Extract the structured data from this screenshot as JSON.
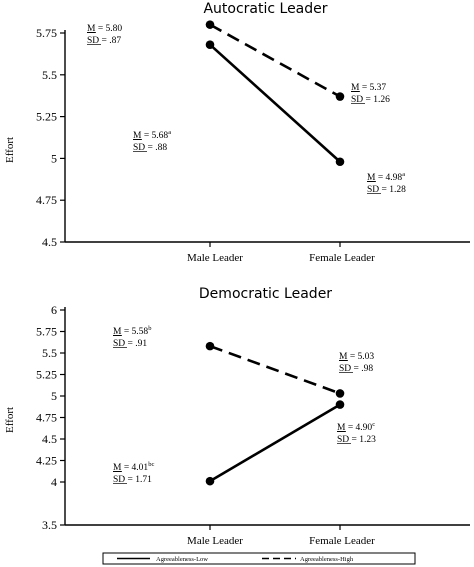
{
  "chart_data": [
    {
      "type": "line",
      "title": "Autocratic Leader",
      "ylabel": "Effort",
      "categories": [
        "Male Leader",
        "Female Leader"
      ],
      "ylim": [
        4.5,
        5.75
      ],
      "yticks": [
        "4.5",
        "4.75",
        "5",
        "5.25",
        "5.5",
        "5.75"
      ],
      "series": [
        {
          "values": [
            5.68,
            4.98
          ],
          "style": "solid"
        },
        {
          "values": [
            5.8,
            5.37
          ],
          "style": "dashed"
        }
      ],
      "annotations": [
        {
          "m_label": "M",
          "m_text": " = 5.80",
          "m_sup": "",
          "sd_label": "SD",
          "sd_text": " = .87"
        },
        {
          "m_label": "M",
          "m_text": " = 5.37",
          "m_sup": "",
          "sd_label": "SD",
          "sd_text": " = 1.26"
        },
        {
          "m_label": "M",
          "m_text": " = 5.68",
          "m_sup": "a",
          "sd_label": "SD",
          "sd_text": " = .88"
        },
        {
          "m_label": "M",
          "m_text": " = 4.98",
          "m_sup": "a",
          "sd_label": "SD",
          "sd_text": " = 1.28"
        }
      ]
    },
    {
      "type": "line",
      "title": "Democratic Leader",
      "ylabel": "Effort",
      "categories": [
        "Male Leader",
        "Female Leader"
      ],
      "ylim": [
        3.5,
        6
      ],
      "yticks": [
        "3.5",
        "4",
        "4.25",
        "4.5",
        "4.75",
        "5",
        "5.25",
        "5.5",
        "5.75",
        "6"
      ],
      "series": [
        {
          "values": [
            4.01,
            4.9
          ],
          "style": "solid"
        },
        {
          "values": [
            5.58,
            5.03
          ],
          "style": "dashed"
        }
      ],
      "annotations": [
        {
          "m_label": "M",
          "m_text": " = 5.58",
          "m_sup": "b",
          "sd_label": "SD",
          "sd_text": " = .91"
        },
        {
          "m_label": "M",
          "m_text": " = 5.03",
          "m_sup": "",
          "sd_label": "SD",
          "sd_text": " = .98"
        },
        {
          "m_label": "M",
          "m_text": " = 4.90",
          "m_sup": "c",
          "sd_label": "SD",
          "sd_text": " = 1.23"
        },
        {
          "m_label": "M",
          "m_text": " = 4.01",
          "m_sup": "bc",
          "sd_label": "SD",
          "sd_text": " = 1.71"
        }
      ]
    }
  ],
  "legend": {
    "items": [
      {
        "label": "Agreeableness-Low",
        "style": "solid"
      },
      {
        "label": "Agreeableness-High",
        "style": "dashed"
      }
    ]
  }
}
